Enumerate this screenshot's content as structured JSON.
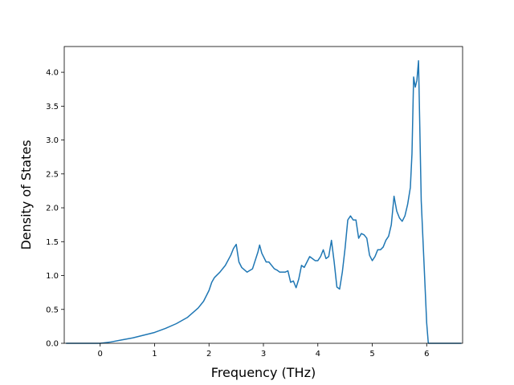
{
  "chart_data": {
    "type": "line",
    "title": "",
    "xlabel": "Frequency (THz)",
    "ylabel": "Density of States",
    "xlim": [
      -0.66,
      6.66
    ],
    "ylim": [
      0,
      4.38
    ],
    "xticks": [
      0,
      1,
      2,
      3,
      4,
      5,
      6
    ],
    "yticks": [
      0.0,
      0.5,
      1.0,
      1.5,
      2.0,
      2.5,
      3.0,
      3.5,
      4.0
    ],
    "xtick_labels": [
      "0",
      "1",
      "2",
      "3",
      "4",
      "5",
      "6"
    ],
    "ytick_labels": [
      "0.0",
      "0.5",
      "1.0",
      "1.5",
      "2.0",
      "2.5",
      "3.0",
      "3.5",
      "4.0"
    ],
    "grid": false,
    "legend": "none",
    "series": [
      {
        "color": "#1f77b4",
        "x": [
          -0.62,
          -0.3,
          0.0,
          0.2,
          0.4,
          0.6,
          0.8,
          1.0,
          1.2,
          1.4,
          1.6,
          1.8,
          1.9,
          2.0,
          2.05,
          2.1,
          2.2,
          2.3,
          2.4,
          2.45,
          2.5,
          2.55,
          2.6,
          2.7,
          2.8,
          2.9,
          2.93,
          2.97,
          3.05,
          3.1,
          3.2,
          3.25,
          3.3,
          3.4,
          3.45,
          3.5,
          3.55,
          3.6,
          3.65,
          3.7,
          3.75,
          3.8,
          3.85,
          3.9,
          3.95,
          4.0,
          4.05,
          4.1,
          4.15,
          4.2,
          4.25,
          4.3,
          4.35,
          4.4,
          4.45,
          4.5,
          4.55,
          4.6,
          4.65,
          4.7,
          4.75,
          4.8,
          4.85,
          4.9,
          4.95,
          5.0,
          5.05,
          5.1,
          5.15,
          5.2,
          5.25,
          5.3,
          5.35,
          5.4,
          5.45,
          5.5,
          5.55,
          5.6,
          5.65,
          5.7,
          5.73,
          5.76,
          5.79,
          5.82,
          5.85,
          5.9,
          5.95,
          6.0,
          6.03,
          6.4,
          6.63
        ],
        "y": [
          0.0,
          0.0,
          0.0,
          0.02,
          0.05,
          0.08,
          0.12,
          0.16,
          0.22,
          0.29,
          0.38,
          0.52,
          0.62,
          0.78,
          0.9,
          0.97,
          1.05,
          1.15,
          1.3,
          1.4,
          1.46,
          1.2,
          1.12,
          1.05,
          1.1,
          1.35,
          1.45,
          1.33,
          1.2,
          1.2,
          1.1,
          1.08,
          1.05,
          1.05,
          1.07,
          0.9,
          0.92,
          0.82,
          0.95,
          1.15,
          1.12,
          1.2,
          1.28,
          1.25,
          1.22,
          1.22,
          1.28,
          1.38,
          1.25,
          1.28,
          1.52,
          1.2,
          0.83,
          0.8,
          1.05,
          1.4,
          1.82,
          1.88,
          1.82,
          1.82,
          1.55,
          1.62,
          1.6,
          1.55,
          1.3,
          1.22,
          1.28,
          1.38,
          1.38,
          1.42,
          1.52,
          1.58,
          1.75,
          2.17,
          1.95,
          1.85,
          1.8,
          1.88,
          2.05,
          2.3,
          2.8,
          3.93,
          3.78,
          3.88,
          4.17,
          2.1,
          1.2,
          0.3,
          0.0,
          0.0,
          0.0
        ]
      }
    ]
  }
}
